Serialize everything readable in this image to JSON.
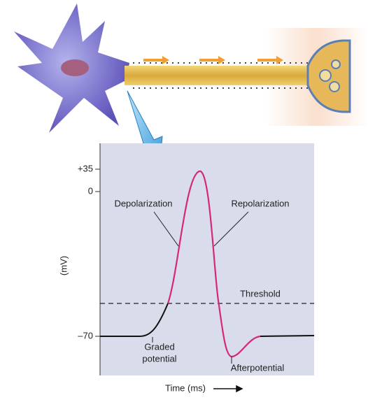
{
  "chart": {
    "y_axis_label": "(mV)",
    "x_axis_label": "Time (ms)",
    "y_ticks": [
      "+35",
      "0",
      "–70"
    ],
    "annotations": {
      "depolarization": "Depolarization",
      "repolarization": "Repolarization",
      "threshold": "Threshold",
      "graded_potential": [
        "Graded",
        "potential"
      ],
      "afterpotential": "Afterpotential"
    }
  }
}
